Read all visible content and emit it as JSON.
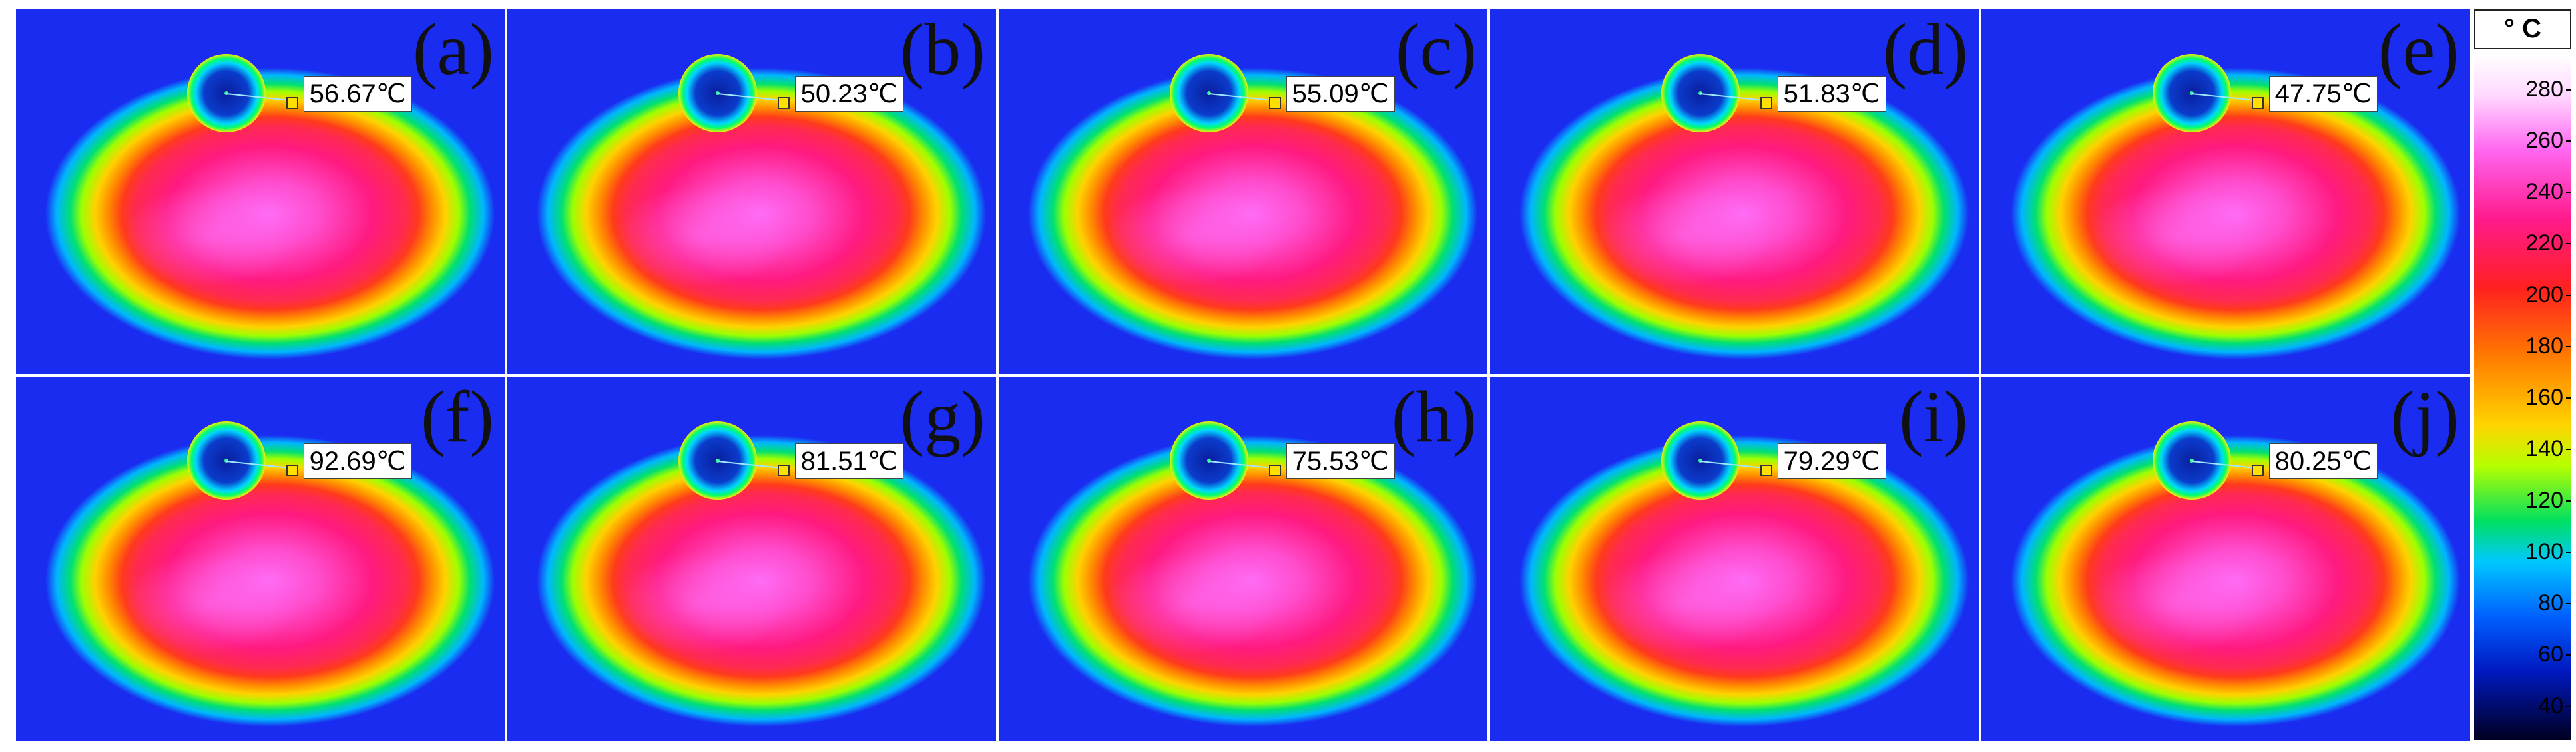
{
  "panels": [
    {
      "label": "(a)",
      "temperature": "56.67℃"
    },
    {
      "label": "(b)",
      "temperature": "50.23℃"
    },
    {
      "label": "(c)",
      "temperature": "55.09℃"
    },
    {
      "label": "(d)",
      "temperature": "51.83℃"
    },
    {
      "label": "(e)",
      "temperature": "47.75℃"
    },
    {
      "label": "(f)",
      "temperature": "92.69℃"
    },
    {
      "label": "(g)",
      "temperature": "81.51℃"
    },
    {
      "label": "(h)",
      "temperature": "75.53℃"
    },
    {
      "label": "(i)",
      "temperature": "79.29℃"
    },
    {
      "label": "(j)",
      "temperature": "80.25℃"
    }
  ],
  "colorbar": {
    "unit": "° C",
    "ticks": [
      "280",
      "260",
      "240",
      "220",
      "200",
      "180",
      "160",
      "140",
      "120",
      "100",
      "80",
      "60",
      "40"
    ]
  }
}
